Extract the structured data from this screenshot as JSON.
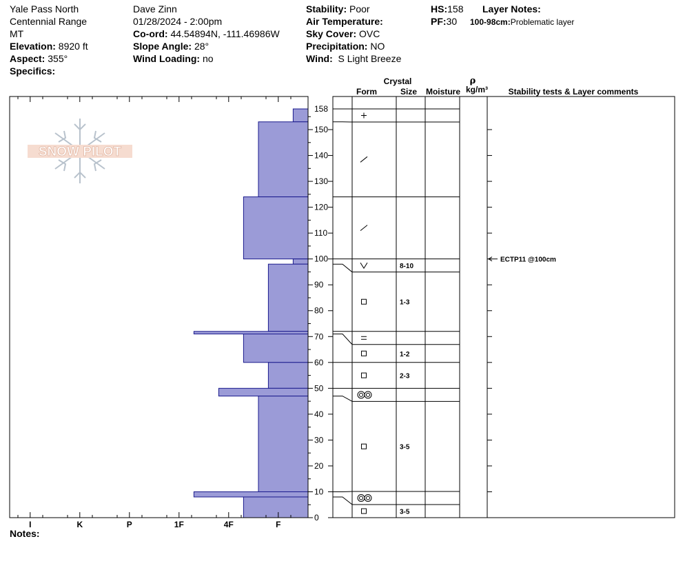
{
  "header": {
    "location": "Yale Pass North",
    "range": "Centennial Range",
    "state": "MT",
    "elevation_label": "Elevation:",
    "elevation": "8920 ft",
    "aspect_label": "Aspect:",
    "aspect": "355°",
    "specifics_label": "Specifics:",
    "observer": "Dave Zinn",
    "datetime": "01/28/2024 - 2:00pm",
    "coord_label": "Co-ord:",
    "coord": "44.54894N, -111.46986W",
    "slope_label": "Slope Angle:",
    "slope": "28°",
    "wind_loading_label": "Wind Loading:",
    "wind_loading": "no",
    "stability_label": "Stability:",
    "stability": "Poor",
    "air_temp_label": "Air Temperature:",
    "sky_label": "Sky Cover:",
    "sky": "OVC",
    "precip_label": "Precipitation:",
    "precip": "NO",
    "wind_label": "Wind:",
    "wind": "S Light Breeze",
    "hs_label": "HS:",
    "hs": "158",
    "pf_label": "PF:",
    "pf": "30",
    "layer_notes_label": "Layer Notes:",
    "layer_note_range": "100-98cm:",
    "layer_note_text": "Problematic layer",
    "notes_label": "Notes:"
  },
  "logo": {
    "text": "SNOW PILOT"
  },
  "chart_data": {
    "type": "bar",
    "orientation": "horizontal",
    "ylabel": "",
    "ylim": [
      0,
      158
    ],
    "y_ticks": [
      0,
      10,
      20,
      30,
      40,
      50,
      60,
      70,
      80,
      90,
      100,
      110,
      120,
      130,
      140,
      150
    ],
    "y_top_label": "158",
    "hardness_scale": [
      "F",
      "4F",
      "1F",
      "P",
      "K",
      "I"
    ],
    "hardness_ticks": [
      "I",
      "K",
      "P",
      "1F",
      "4F",
      "F"
    ],
    "hardness_layers": [
      {
        "bottom": 153,
        "top": 158,
        "hardness": 0.3
      },
      {
        "bottom": 124,
        "top": 153,
        "hardness": 1.0
      },
      {
        "bottom": 100,
        "top": 124,
        "hardness": 1.3
      },
      {
        "bottom": 98,
        "top": 100,
        "hardness": 0.3
      },
      {
        "bottom": 72,
        "top": 98,
        "hardness": 0.8
      },
      {
        "bottom": 71,
        "top": 72,
        "hardness": 2.3
      },
      {
        "bottom": 60,
        "top": 71,
        "hardness": 1.3
      },
      {
        "bottom": 50,
        "top": 60,
        "hardness": 0.8
      },
      {
        "bottom": 47,
        "top": 50,
        "hardness": 1.8
      },
      {
        "bottom": 10,
        "top": 47,
        "hardness": 1.0
      },
      {
        "bottom": 8,
        "top": 10,
        "hardness": 2.3
      },
      {
        "bottom": 0,
        "top": 8,
        "hardness": 1.3
      }
    ],
    "bar_color": "#9b9bd7",
    "bar_stroke": "#1a1a8c",
    "profile_columns": {
      "crystal_title": "Crystal",
      "form": "Form",
      "size": "Size",
      "moisture": "Moisture",
      "rho": "ρ",
      "density": "kg/m³",
      "comments": "Stability tests & Layer comments"
    },
    "profile_boundaries": [
      158,
      153,
      124,
      100,
      98,
      72,
      71,
      60,
      50,
      47,
      10,
      8,
      0
    ],
    "profile_layers": [
      {
        "bottom": 153,
        "top": 158,
        "form": "+",
        "size": ""
      },
      {
        "bottom": 124,
        "top": 153,
        "form": "/",
        "size": ""
      },
      {
        "bottom": 100,
        "top": 124,
        "form": "/",
        "size": ""
      },
      {
        "bottom": 98,
        "top": 100,
        "form": "V",
        "size": "8-10"
      },
      {
        "bottom": 72,
        "top": 98,
        "form": "□",
        "size": "1-3"
      },
      {
        "bottom": 71,
        "top": 72,
        "form": "=",
        "size": ""
      },
      {
        "bottom": 60,
        "top": 71,
        "form": "□",
        "size": "1-2"
      },
      {
        "bottom": 50,
        "top": 60,
        "form": "□",
        "size": "2-3"
      },
      {
        "bottom": 47,
        "top": 50,
        "form": "◎◎",
        "size": ""
      },
      {
        "bottom": 10,
        "top": 47,
        "form": "□",
        "size": "3-5"
      },
      {
        "bottom": 8,
        "top": 10,
        "form": "◎◎",
        "size": ""
      },
      {
        "bottom": 0,
        "top": 8,
        "form": "□",
        "size": "3-5"
      }
    ],
    "stability_tests": [
      {
        "depth": 100,
        "text": "ECTP11 @100cm"
      }
    ]
  }
}
